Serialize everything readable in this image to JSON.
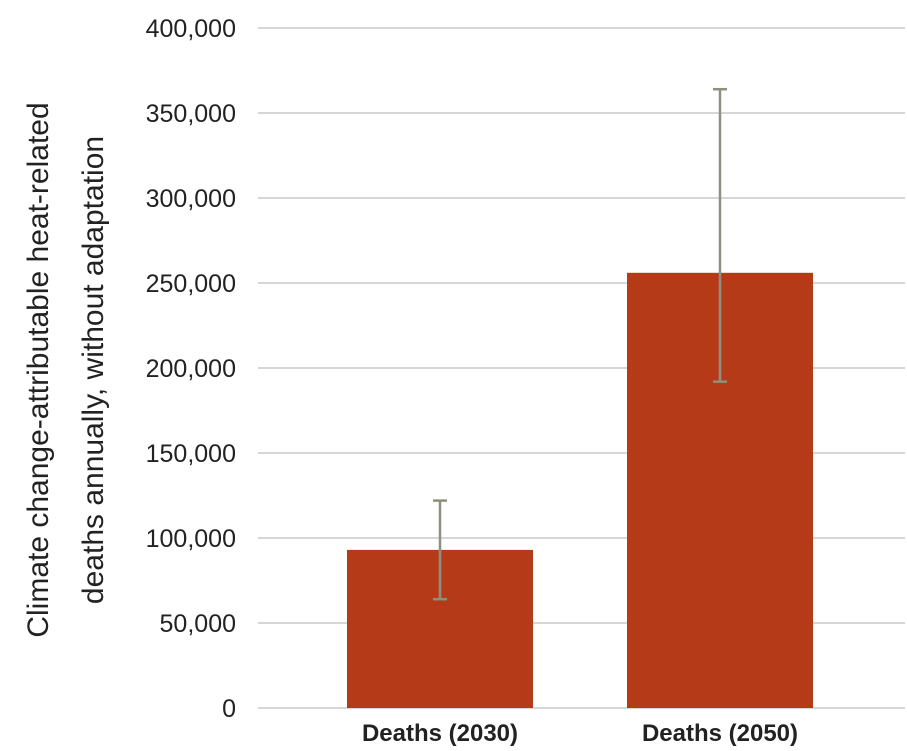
{
  "chart_data": {
    "type": "bar",
    "title": "",
    "xlabel": "",
    "ylabel_lines": [
      "Climate change-attributable heat-related",
      "deaths annually, without adaptation"
    ],
    "categories": [
      "Deaths (2030)",
      "Deaths (2050)"
    ],
    "values": [
      93000,
      256000
    ],
    "error_low": [
      64000,
      192000
    ],
    "error_high": [
      122000,
      364000
    ],
    "ylim": [
      0,
      400000
    ],
    "yticks": [
      0,
      50000,
      100000,
      150000,
      200000,
      250000,
      300000,
      350000,
      400000
    ],
    "ytick_labels": [
      "0",
      "50,000",
      "100,000",
      "150,000",
      "200,000",
      "250,000",
      "300,000",
      "350,000",
      "400,000"
    ],
    "grid": true,
    "legend": "none",
    "colors": {
      "bar": "#b53a17",
      "error_bar": "#8f8f80",
      "grid": "#c8c8c8",
      "text": "#222222"
    }
  }
}
